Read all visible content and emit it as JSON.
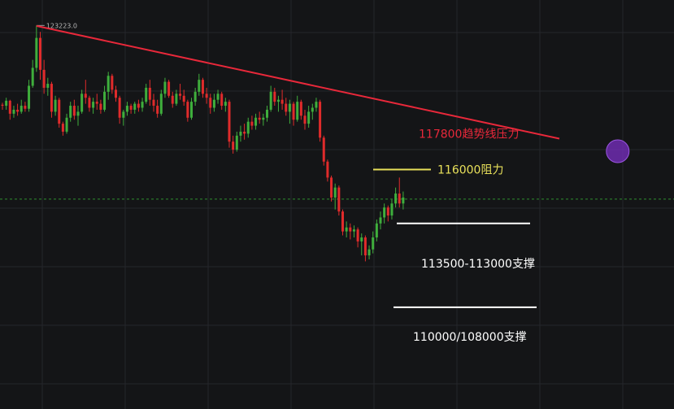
{
  "chart_data": {
    "type": "candlestick",
    "grid": true,
    "title": "",
    "xlabel": "",
    "ylabel": "",
    "ylim": [
      104000,
      124500
    ],
    "colors": {
      "up": "#3fae3c",
      "down": "#e02b2b",
      "background": "#141517",
      "grid": "#25272b"
    },
    "high_marker": {
      "label": "123223.0",
      "value": 123223
    },
    "current_price_line": {
      "value": 114520,
      "color": "#2f8f2f"
    },
    "trendline": {
      "label": "117800趋势线压力",
      "color": "#e8283a",
      "start_value": 123200,
      "end_value": 117550,
      "marker_value": 117800,
      "marker_color": "#7a2fc4"
    },
    "levels": [
      {
        "label": "116000阻力",
        "value": 116000,
        "color": "#e8e05a"
      },
      {
        "label": "113500-113000支撑",
        "value": 113300,
        "color": "#ffffff"
      },
      {
        "label": "110000/108000支撑",
        "value": 109100,
        "color": "#ffffff"
      }
    ],
    "candles": [
      [
        119250,
        119350,
        119000,
        119200
      ],
      [
        119200,
        119600,
        119000,
        119450
      ],
      [
        119450,
        119500,
        118500,
        118800
      ],
      [
        118800,
        119200,
        118600,
        119000
      ],
      [
        119000,
        119300,
        118700,
        118900
      ],
      [
        118900,
        119500,
        118800,
        119200
      ],
      [
        119200,
        119400,
        118900,
        119050
      ],
      [
        119050,
        120500,
        118900,
        120200
      ],
      [
        120200,
        121500,
        120100,
        121100
      ],
      [
        121100,
        123223,
        120900,
        122600
      ],
      [
        122600,
        122900,
        120500,
        121000
      ],
      [
        121000,
        121500,
        119800,
        120100
      ],
      [
        120100,
        120600,
        119700,
        120300
      ],
      [
        120300,
        120400,
        118600,
        118900
      ],
      [
        118900,
        119700,
        118700,
        119500
      ],
      [
        119500,
        119600,
        118100,
        118300
      ],
      [
        118300,
        118400,
        117700,
        117900
      ],
      [
        117900,
        118800,
        117800,
        118600
      ],
      [
        118600,
        119400,
        118400,
        119200
      ],
      [
        119200,
        119500,
        118500,
        118700
      ],
      [
        118700,
        119200,
        118200,
        118900
      ],
      [
        118900,
        120000,
        118800,
        119800
      ],
      [
        119800,
        120500,
        119300,
        119600
      ],
      [
        119600,
        119700,
        118900,
        119100
      ],
      [
        119100,
        119600,
        118800,
        119400
      ],
      [
        119400,
        119800,
        119000,
        119300
      ],
      [
        119300,
        119500,
        118800,
        119000
      ],
      [
        119000,
        120200,
        118900,
        119900
      ],
      [
        119900,
        120900,
        119500,
        120700
      ],
      [
        120700,
        120800,
        119800,
        120000
      ],
      [
        120000,
        120200,
        119400,
        119600
      ],
      [
        119600,
        119700,
        118300,
        118600
      ],
      [
        118600,
        119000,
        118200,
        118900
      ],
      [
        118900,
        119400,
        118700,
        119200
      ],
      [
        119200,
        119300,
        118800,
        119000
      ],
      [
        119000,
        119400,
        118800,
        119300
      ],
      [
        119300,
        119500,
        118900,
        119100
      ],
      [
        119100,
        119600,
        118900,
        119400
      ],
      [
        119400,
        120300,
        119300,
        120100
      ],
      [
        120100,
        120500,
        119200,
        119500
      ],
      [
        119500,
        119800,
        118900,
        119200
      ],
      [
        119200,
        119500,
        118600,
        118800
      ],
      [
        118800,
        120000,
        118700,
        119800
      ],
      [
        119800,
        120600,
        119600,
        120400
      ],
      [
        120400,
        120500,
        119600,
        119700
      ],
      [
        119700,
        119900,
        119100,
        119300
      ],
      [
        119300,
        120000,
        119200,
        119800
      ],
      [
        119800,
        120300,
        119500,
        119700
      ],
      [
        119700,
        120000,
        119200,
        119400
      ],
      [
        119400,
        119500,
        118400,
        118600
      ],
      [
        118600,
        119600,
        118500,
        119400
      ],
      [
        119400,
        120100,
        119200,
        119900
      ],
      [
        119900,
        120800,
        119700,
        120500
      ],
      [
        120500,
        120600,
        119600,
        119800
      ],
      [
        119800,
        120100,
        119300,
        119600
      ],
      [
        119600,
        119800,
        118800,
        119100
      ],
      [
        119100,
        119800,
        118900,
        119500
      ],
      [
        119500,
        120000,
        119300,
        119800
      ],
      [
        119800,
        119900,
        119000,
        119200
      ],
      [
        119200,
        119600,
        118900,
        119400
      ],
      [
        119400,
        119500,
        117100,
        117400
      ],
      [
        117400,
        117700,
        116800,
        117000
      ],
      [
        117000,
        117900,
        116900,
        117700
      ],
      [
        117700,
        118200,
        117400,
        117900
      ],
      [
        117900,
        118300,
        117500,
        117800
      ],
      [
        117800,
        118600,
        117600,
        118400
      ],
      [
        118400,
        118700,
        118000,
        118200
      ],
      [
        118200,
        118800,
        118000,
        118600
      ],
      [
        118600,
        118900,
        118300,
        118500
      ],
      [
        118500,
        118800,
        118200,
        118600
      ],
      [
        118600,
        119200,
        118400,
        119000
      ],
      [
        119000,
        120200,
        118900,
        119900
      ],
      [
        119900,
        120100,
        119200,
        119400
      ],
      [
        119400,
        119700,
        118900,
        119500
      ],
      [
        119500,
        120000,
        119000,
        119300
      ],
      [
        119300,
        119600,
        118700,
        118900
      ],
      [
        118900,
        119500,
        118300,
        119300
      ],
      [
        119300,
        119400,
        118200,
        118500
      ],
      [
        118500,
        119700,
        118400,
        119400
      ],
      [
        119400,
        119500,
        118500,
        118700
      ],
      [
        118700,
        119000,
        118000,
        118300
      ],
      [
        118300,
        119200,
        118100,
        118900
      ],
      [
        118900,
        119300,
        118500,
        119100
      ],
      [
        119100,
        119600,
        118900,
        119400
      ],
      [
        119400,
        119500,
        117400,
        117600
      ],
      [
        117600,
        117700,
        116200,
        116400
      ],
      [
        116400,
        116500,
        115400,
        115600
      ],
      [
        115600,
        115700,
        114400,
        114600
      ],
      [
        114600,
        115300,
        114000,
        115100
      ],
      [
        115100,
        115200,
        113700,
        113900
      ],
      [
        113900,
        114000,
        112700,
        112900
      ],
      [
        112900,
        113400,
        112600,
        113100
      ],
      [
        113100,
        113300,
        112500,
        112900
      ],
      [
        112900,
        113200,
        112600,
        113000
      ],
      [
        113000,
        113100,
        112100,
        112400
      ],
      [
        112400,
        112800,
        111700,
        112600
      ],
      [
        112600,
        112700,
        111400,
        111700
      ],
      [
        111700,
        112200,
        111500,
        112000
      ],
      [
        112000,
        112900,
        111800,
        112600
      ],
      [
        112600,
        113500,
        112400,
        113300
      ],
      [
        113300,
        113900,
        113000,
        113600
      ],
      [
        113600,
        114300,
        113300,
        114100
      ],
      [
        114100,
        114200,
        113400,
        113700
      ],
      [
        113700,
        114500,
        113500,
        114300
      ],
      [
        114300,
        115100,
        114100,
        114800
      ],
      [
        114800,
        115600,
        114100,
        114300
      ],
      [
        114300,
        114900,
        114000,
        114600
      ]
    ]
  }
}
